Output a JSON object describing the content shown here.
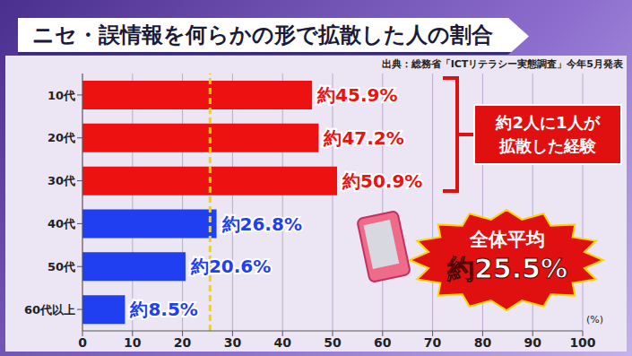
{
  "chart_data": {
    "type": "bar",
    "orientation": "horizontal",
    "title": "ニセ・誤情報を何らかの形で拡散した人の割合",
    "subtitle": "出典：総務省「ICTリテラシー実態調査」今年5月発表",
    "categories": [
      "10代",
      "20代",
      "30代",
      "40代",
      "50代",
      "60代以上"
    ],
    "values": [
      45.9,
      47.2,
      50.9,
      26.8,
      20.6,
      8.5
    ],
    "value_labels": [
      "約45.9%",
      "約47.2%",
      "約50.9%",
      "約26.8%",
      "約20.6%",
      "約8.5%"
    ],
    "data_labels": true,
    "colors": [
      "#ee1111",
      "#ee1111",
      "#ee1111",
      "#1f3ff0",
      "#1f3ff0",
      "#1f3ff0"
    ],
    "xlim": [
      0,
      100
    ],
    "xticks": [
      0,
      10,
      20,
      30,
      40,
      50,
      60,
      70,
      80,
      90,
      100
    ],
    "x_label": "(%)",
    "grid": true,
    "reference_line": {
      "value": 25.5,
      "label": "全体平均",
      "value_label": "約25.5%"
    },
    "annotation": "約2人に1人が拡散した経験"
  }
}
